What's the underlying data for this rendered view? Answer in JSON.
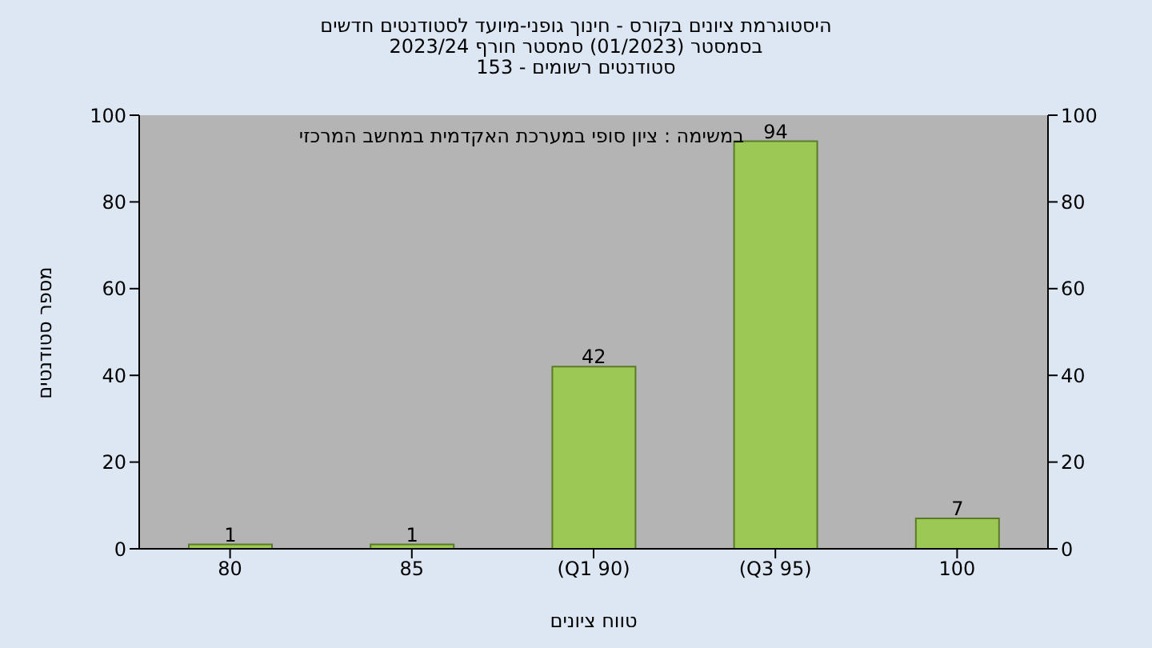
{
  "chart_data": {
    "type": "bar",
    "title": "היסטוגרמת ציונים בקורס - חינוך גופני-מיועד לסטודנטים חדשים",
    "subtitle": "בסמסטר  (01/2023)  סמסטר חורף  2023/24\nסטודנטים רשומים - 153",
    "xlabel": "טווח ציונים",
    "ylabel": "מספר סטודנטים",
    "annotations": [
      "במשימה : ציון סופי במערכת האקדמית במחשב המרכזי"
    ],
    "categories": [
      "80",
      "85",
      "(Q1 90)",
      "(Q3 95)",
      "100"
    ],
    "values": [
      1,
      1,
      42,
      94,
      7
    ],
    "color": "#9cc855",
    "data_labels": true,
    "ylim": [
      0,
      100
    ],
    "yticks": [
      0,
      20,
      40,
      60,
      80,
      100
    ],
    "y2lim": [
      0,
      100
    ],
    "y2ticks": [
      0,
      20,
      40,
      60,
      80,
      100
    ]
  }
}
